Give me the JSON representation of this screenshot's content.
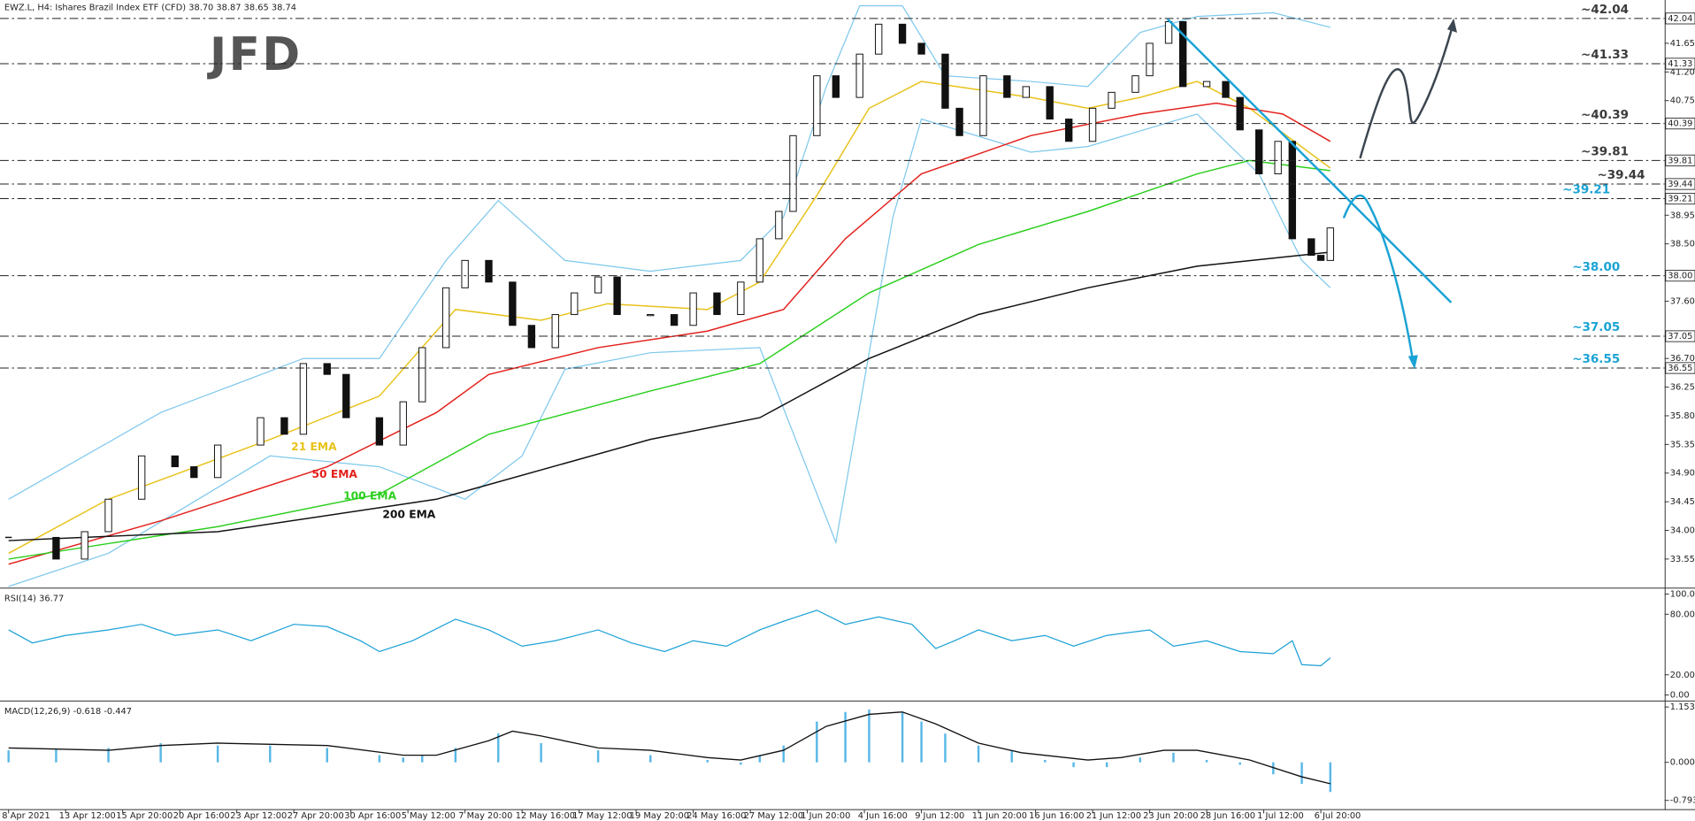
{
  "header": "EWZ.L, H4: Ishares Brazil Index ETF (CFD) 38.70 38.87 38.65 38.74",
  "logo": "JFD",
  "chart_data": [
    {
      "type": "candlestick",
      "xlim": [
        -1.8,
        348.3
      ],
      "ylim": [
        33.12,
        42.33
      ],
      "yticks": [
        41.65,
        {
          "value": 41.2,
          "label": "41.20"
        },
        40.75,
        38.95,
        {
          "value": 38.5,
          "label": "38.50"
        },
        {
          "value": 37.6,
          "label": "37.60"
        },
        {
          "value": 36.7,
          "label": "36.70"
        },
        36.25,
        {
          "value": 35.8,
          "label": "35.80"
        },
        35.35,
        {
          "value": 34.9,
          "label": "34.90"
        },
        34.45,
        {
          "value": 34,
          "label": "34.00"
        },
        33.55
      ],
      "x": [
        0,
        10,
        16,
        21,
        28,
        35,
        39,
        44,
        53,
        58,
        62,
        67,
        71,
        78,
        83,
        87,
        92,
        96,
        101,
        106,
        110,
        115,
        119,
        124,
        128,
        135,
        140,
        144,
        149,
        154,
        158,
        162,
        165,
        170,
        174,
        179,
        183,
        188,
        192,
        197,
        200,
        205,
        210,
        214,
        219,
        223,
        228,
        232,
        237,
        240,
        244,
        247,
        252,
        256,
        259,
        263,
        267,
        270,
        274,
        276,
        278
      ],
      "close": [
        33.89,
        33.55,
        33.98,
        34.49,
        35.17,
        35.0,
        34.83,
        35.34,
        35.77,
        35.51,
        36.62,
        36.45,
        35.77,
        35.34,
        36.02,
        36.87,
        37.81,
        38.24,
        37.9,
        37.22,
        36.87,
        37.39,
        37.73,
        37.98,
        37.39,
        37.39,
        37.22,
        37.73,
        37.39,
        37.9,
        38.58,
        39.01,
        40.2,
        41.14,
        40.8,
        41.48,
        41.95,
        41.65,
        41.48,
        40.63,
        40.2,
        41.14,
        40.8,
        40.97,
        40.46,
        40.11,
        40.63,
        40.88,
        41.14,
        41.65,
        41.99,
        40.97,
        41.05,
        40.8,
        40.29,
        39.6,
        40.11,
        38.58,
        38.32,
        38.24,
        38.75
      ],
      "indicators": [
        {
          "name": "21 EMA",
          "color": "#e8c21a",
          "x": [
            0,
            21,
            55,
            78,
            94,
            112,
            126,
            147,
            158,
            170,
            181,
            192,
            215,
            227,
            238,
            250,
            261,
            278
          ],
          "values": [
            33.64,
            34.49,
            35.43,
            36.11,
            37.47,
            37.3,
            37.56,
            37.47,
            37.9,
            39.26,
            40.63,
            41.05,
            40.8,
            40.63,
            40.8,
            41.05,
            40.63,
            39.69
          ]
        },
        {
          "name": "50 EMA",
          "color": "#e3211c",
          "x": [
            0,
            32,
            67,
            90,
            101,
            124,
            147,
            163,
            176,
            192,
            215,
            238,
            254,
            268,
            278
          ],
          "values": [
            33.47,
            34.15,
            35.0,
            35.85,
            36.45,
            36.87,
            37.13,
            37.47,
            38.58,
            39.6,
            40.2,
            40.54,
            40.71,
            40.54,
            40.11
          ]
        },
        {
          "name": "100 EMA",
          "color": "#2ccf1f",
          "x": [
            0,
            44,
            78,
            101,
            135,
            158,
            181,
            204,
            227,
            250,
            261,
            278
          ],
          "values": [
            33.55,
            34.06,
            34.57,
            35.51,
            36.19,
            36.62,
            37.73,
            38.49,
            39.01,
            39.6,
            39.81,
            39.65
          ]
        },
        {
          "name": "200 EMA",
          "color": "#111111",
          "x": [
            0,
            44,
            90,
            135,
            158,
            181,
            204,
            227,
            250,
            278
          ],
          "values": [
            33.84,
            33.98,
            34.49,
            35.43,
            35.77,
            36.7,
            37.39,
            37.81,
            38.15,
            38.37
          ]
        }
      ],
      "bands": [
        {
          "color": "#7ec8ec",
          "x": [
            0,
            32,
            62,
            78,
            92,
            103,
            117,
            135,
            154,
            163,
            172,
            179,
            188,
            197,
            215,
            227,
            238,
            250,
            266,
            278
          ],
          "values": [
            34.49,
            35.85,
            36.7,
            36.7,
            38.24,
            39.18,
            38.24,
            38.07,
            38.24,
            38.92,
            40.97,
            42.24,
            42.24,
            41.14,
            41.05,
            40.97,
            41.82,
            42.07,
            42.13,
            41.9
          ]
        },
        {
          "color": "#7ec8ec",
          "x": [
            0,
            21,
            55,
            78,
            96,
            108,
            117,
            135,
            158,
            174,
            186,
            192,
            215,
            227,
            250,
            263,
            272,
            278
          ],
          "values": [
            33.12,
            33.64,
            35.17,
            35.0,
            34.49,
            35.17,
            36.53,
            36.79,
            36.87,
            33.81,
            38.92,
            40.46,
            39.94,
            40.03,
            40.54,
            39.6,
            38.24,
            37.81
          ]
        }
      ],
      "levels": [
        {
          "value": 42.04,
          "label": "~42.04",
          "axis_label": "42.04",
          "color": "#3a3a3a"
        },
        {
          "value": 41.33,
          "label": "~41.33",
          "axis_label": "41.33",
          "color": "#3a3a3a"
        },
        {
          "value": 40.39,
          "label": "~40.39",
          "axis_label": "40.39",
          "color": "#3a3a3a"
        },
        {
          "value": 39.81,
          "label": "~39.81",
          "axis_label": "39.81",
          "color": "#3a3a3a"
        },
        {
          "value": 39.44,
          "label": "~39.44",
          "axis_label": "39.44",
          "color": "#3a3a3a"
        },
        {
          "value": 39.21,
          "label": "~39.21",
          "axis_label": "39.21",
          "color": "#1aa3d4"
        },
        {
          "value": 38.0,
          "label": "~38.00",
          "axis_label": "38.00",
          "color": "#1aa3d4"
        },
        {
          "value": 37.05,
          "label": "~37.05",
          "axis_label": "37.05",
          "color": "#1aa3d4"
        },
        {
          "value": 36.55,
          "label": "~36.55",
          "axis_label": "36.55",
          "color": "#1aa3d4"
        }
      ]
    },
    {
      "type": "line",
      "title": "RSI(14) 36.77",
      "color": "#1ba1d6",
      "xlim": [
        -1.8,
        348.3
      ],
      "ylim": [
        -5.4,
        104.3
      ],
      "yticks": [
        {
          "value": 100,
          "label": "100.00"
        },
        {
          "value": 80,
          "label": "80.00"
        },
        {
          "value": 20,
          "label": "20.00"
        },
        {
          "value": 0,
          "label": "0.00"
        }
      ],
      "x": [
        0,
        5,
        12,
        21,
        28,
        35,
        44,
        51,
        60,
        67,
        74,
        78,
        85,
        94,
        101,
        108,
        115,
        124,
        131,
        138,
        144,
        151,
        158,
        163,
        170,
        176,
        183,
        190,
        195,
        199,
        204,
        211,
        218,
        224,
        231,
        240,
        245,
        252,
        259,
        266,
        270,
        272,
        276,
        278
      ],
      "values": [
        64.5,
        51.6,
        59,
        64.5,
        70,
        59,
        64.5,
        53.8,
        70,
        67.7,
        53.8,
        43,
        53.8,
        75,
        64.5,
        48.4,
        53.8,
        64.5,
        51.6,
        43,
        53.8,
        48.4,
        64.5,
        73,
        84,
        70,
        77.4,
        70,
        46,
        53.8,
        64.5,
        53.8,
        59,
        48.4,
        59,
        64.5,
        48.4,
        53.8,
        43,
        40.9,
        53.8,
        30.1,
        29,
        36.77
      ]
    },
    {
      "type": "macd",
      "title": "MACD(12,26,9) -0.618 -0.447",
      "color": "#5ab8e6",
      "xlim": [
        -1.8,
        348.3
      ],
      "ylim": [
        -0.973,
        1.244
      ],
      "yticks": [
        1.153,
        {
          "value": 0,
          "label": "0.000"
        },
        -0.793
      ],
      "x": [
        0,
        10,
        21,
        32,
        44,
        55,
        67,
        78,
        83,
        87,
        94,
        103,
        112,
        124,
        135,
        147,
        154,
        158,
        163,
        170,
        176,
        181,
        188,
        192,
        197,
        204,
        211,
        218,
        224,
        231,
        238,
        245,
        252,
        259,
        266,
        272,
        278
      ],
      "values": [
        0.25,
        0.27,
        0.3,
        0.4,
        0.35,
        0.35,
        0.3,
        0.15,
        0.1,
        0.15,
        0.3,
        0.6,
        0.4,
        0.25,
        0.15,
        0.05,
        -0.05,
        0.15,
        0.35,
        0.85,
        1.05,
        1.1,
        1.05,
        0.85,
        0.6,
        0.35,
        0.25,
        0.05,
        -0.1,
        -0.1,
        0.1,
        0.2,
        0.05,
        -0.05,
        -0.25,
        -0.45,
        -0.618
      ],
      "signal": {
        "color": "#111111",
        "x": [
          0,
          21,
          32,
          44,
          67,
          83,
          90,
          101,
          106,
          112,
          124,
          135,
          147,
          154,
          163,
          172,
          181,
          188,
          195,
          204,
          213,
          227,
          234,
          243,
          250,
          261,
          272,
          278
        ],
        "values": [
          0.3,
          0.25,
          0.35,
          0.4,
          0.35,
          0.15,
          0.15,
          0.45,
          0.65,
          0.55,
          0.3,
          0.25,
          0.1,
          0.05,
          0.25,
          0.75,
          1.0,
          1.05,
          0.8,
          0.4,
          0.2,
          0.05,
          0.1,
          0.25,
          0.25,
          0.05,
          -0.3,
          -0.447
        ]
      },
      "xticks": [
        {
          "value": 0,
          "label": "8 Apr 2021"
        },
        {
          "value": 12,
          "label": "13 Apr 12:00"
        },
        {
          "value": 24,
          "label": "15 Apr 20:00"
        },
        {
          "value": 36,
          "label": "20 Apr 16:00"
        },
        {
          "value": 48,
          "label": "23 Apr 12:00"
        },
        {
          "value": 60,
          "label": "27 Apr 20:00"
        },
        {
          "value": 72,
          "label": "30 Apr 16:00"
        },
        {
          "value": 84,
          "label": "5 May 12:00"
        },
        {
          "value": 96,
          "label": "7 May 20:00"
        },
        {
          "value": 108,
          "label": "12 May 16:00"
        },
        {
          "value": 120,
          "label": "17 May 12:00"
        },
        {
          "value": 132,
          "label": "19 May 20:00"
        },
        {
          "value": 144,
          "label": "24 May 16:00"
        },
        {
          "value": 156,
          "label": "27 May 12:00"
        },
        {
          "value": 168,
          "label": "1 Jun 20:00"
        },
        {
          "value": 180,
          "label": "4 Jun 16:00"
        },
        {
          "value": 192,
          "label": "9 Jun 12:00"
        },
        {
          "value": 204,
          "label": "11 Jun 20:00"
        },
        {
          "value": 216,
          "label": "16 Jun 16:00"
        },
        {
          "value": 228,
          "label": "21 Jun 12:00"
        },
        {
          "value": 240,
          "label": "23 Jun 20:00"
        },
        {
          "value": 252,
          "label": "28 Jun 16:00"
        },
        {
          "value": 264,
          "label": "1 Jul 12:00"
        },
        {
          "value": 276,
          "label": "6 Jul 20:00"
        }
      ]
    }
  ]
}
